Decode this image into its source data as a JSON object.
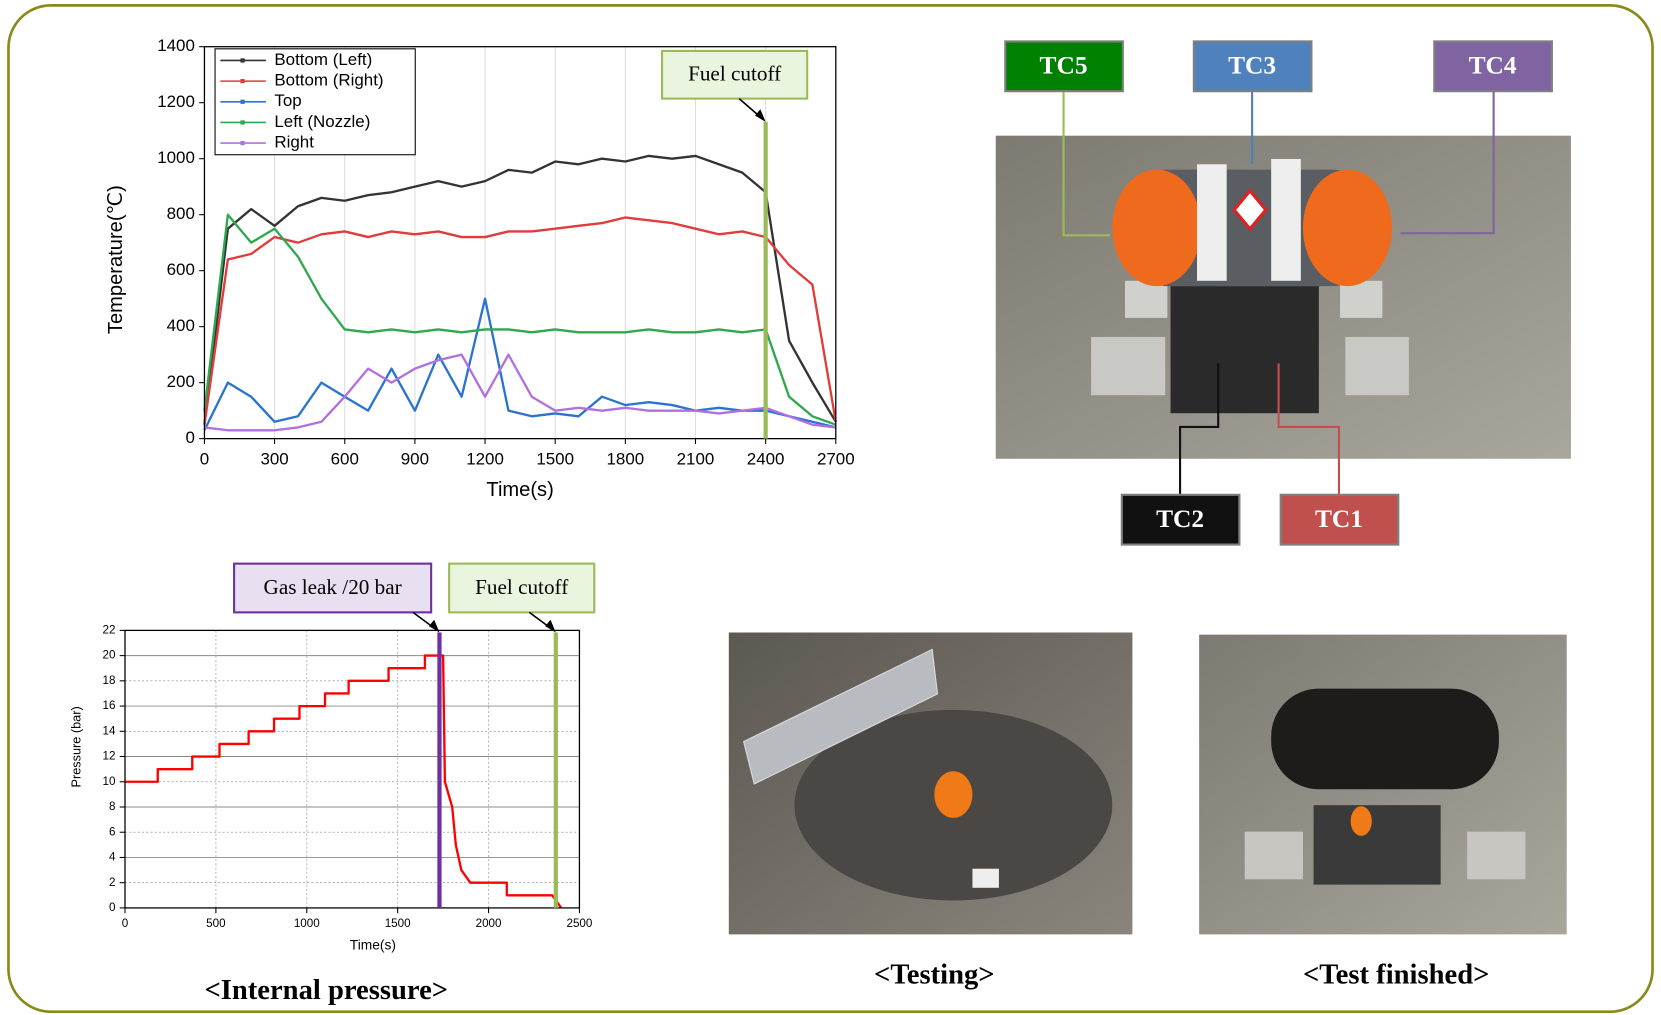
{
  "chart_data": [
    {
      "type": "line",
      "x_label": "Time(s)",
      "y_label": "Temperature(℃)",
      "x": [
        0,
        100,
        200,
        300,
        400,
        500,
        600,
        700,
        800,
        900,
        1000,
        1100,
        1200,
        1300,
        1400,
        1500,
        1600,
        1700,
        1800,
        1900,
        2000,
        2100,
        2200,
        2300,
        2400,
        2500,
        2600,
        2700
      ],
      "series": [
        {
          "name": "Bottom (Left)",
          "color": "#333333",
          "values": [
            50,
            750,
            820,
            760,
            830,
            860,
            850,
            870,
            880,
            900,
            920,
            900,
            920,
            960,
            950,
            990,
            980,
            1000,
            990,
            1010,
            1000,
            1010,
            980,
            950,
            880,
            350,
            200,
            60
          ]
        },
        {
          "name": "Bottom (Right)",
          "color": "#e03c3c",
          "values": [
            50,
            640,
            660,
            720,
            700,
            730,
            740,
            720,
            740,
            730,
            740,
            720,
            720,
            740,
            740,
            750,
            760,
            770,
            790,
            780,
            770,
            750,
            730,
            740,
            720,
            620,
            550,
            60
          ]
        },
        {
          "name": "Top",
          "color": "#2a74d0",
          "values": [
            30,
            200,
            150,
            60,
            80,
            200,
            150,
            100,
            250,
            100,
            300,
            150,
            500,
            100,
            80,
            90,
            80,
            150,
            120,
            130,
            120,
            100,
            110,
            100,
            100,
            80,
            60,
            40
          ]
        },
        {
          "name": "Left (Nozzle)",
          "color": "#2ea84e",
          "values": [
            100,
            800,
            700,
            750,
            650,
            500,
            390,
            380,
            390,
            380,
            390,
            380,
            390,
            390,
            380,
            390,
            380,
            380,
            380,
            390,
            380,
            380,
            390,
            380,
            390,
            150,
            80,
            50
          ]
        },
        {
          "name": "Right",
          "color": "#b070e0",
          "values": [
            40,
            30,
            30,
            30,
            40,
            60,
            150,
            250,
            200,
            250,
            280,
            300,
            150,
            300,
            150,
            100,
            110,
            100,
            110,
            100,
            100,
            100,
            90,
            100,
            110,
            80,
            50,
            40
          ]
        }
      ],
      "xlim": [
        0,
        2700
      ],
      "xticks": [
        0,
        300,
        600,
        900,
        1200,
        1500,
        1800,
        2100,
        2400,
        2700
      ],
      "ylim": [
        0,
        1400
      ],
      "yticks": [
        0,
        200,
        400,
        600,
        800,
        1000,
        1200,
        1400
      ],
      "grid": "x",
      "legend": "upper left",
      "annotations": [
        {
          "text": "Fuel cutoff",
          "x": 2400,
          "color": "#9bbb59"
        }
      ]
    },
    {
      "type": "line",
      "x_label": "Time(s)",
      "y_label": "Pressure (bar)",
      "caption": "<Internal pressure>",
      "x": [
        0,
        180,
        180,
        370,
        370,
        520,
        520,
        680,
        680,
        820,
        820,
        960,
        960,
        1100,
        1100,
        1230,
        1230,
        1450,
        1450,
        1650,
        1650,
        1750,
        1760,
        1800,
        1820,
        1850,
        1900,
        2100,
        2100,
        2350,
        2400
      ],
      "series": [
        {
          "color": "#ff0000",
          "values": [
            10,
            10,
            11,
            11,
            12,
            12,
            13,
            13,
            14,
            14,
            15,
            15,
            16,
            16,
            17,
            17,
            18,
            18,
            19,
            19,
            20,
            20,
            10,
            8,
            5,
            3,
            2,
            2,
            1,
            1,
            0
          ]
        }
      ],
      "xlim": [
        0,
        2500
      ],
      "xticks": [
        0,
        500,
        1000,
        1500,
        2000,
        2500
      ],
      "ylim": [
        0,
        22
      ],
      "yticks": [
        0,
        2,
        4,
        6,
        8,
        10,
        12,
        14,
        16,
        18,
        20,
        22
      ],
      "grid": "both",
      "annotations": [
        {
          "text": "Gas leak /20 bar",
          "x": 1730,
          "color": "#7030a0"
        },
        {
          "text": "Fuel cutoff",
          "x": 2370,
          "color": "#9bbb59"
        }
      ]
    }
  ],
  "tc_labels": [
    {
      "text": "TC5",
      "color": "#008000"
    },
    {
      "text": "TC3",
      "color": "#4f81bd"
    },
    {
      "text": "TC4",
      "color": "#8064a2"
    },
    {
      "text": "TC2",
      "color": "#111111"
    },
    {
      "text": "TC1",
      "color": "#c0504d"
    }
  ],
  "photo_captions": [
    "<Testing>",
    "<Test finished>"
  ]
}
